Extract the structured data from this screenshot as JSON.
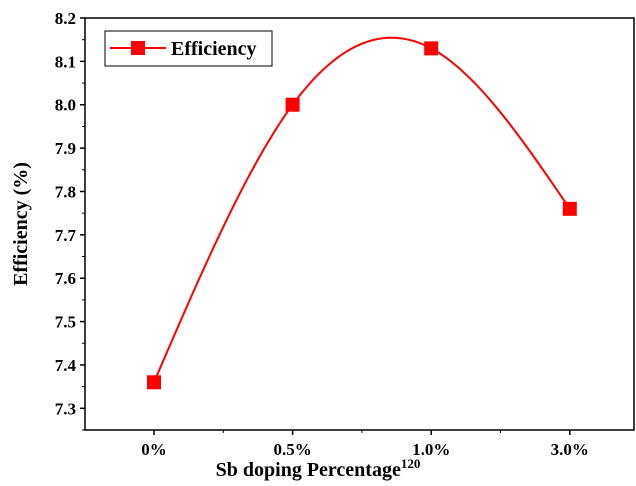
{
  "chart_data": {
    "type": "line",
    "title": "",
    "xlabel": "Sb doping Percentage",
    "xlabel_superscript": "120",
    "ylabel": "Efficiency (%)",
    "categories": [
      "0%",
      "0.5%",
      "1.0%",
      "3.0%"
    ],
    "series": [
      {
        "name": "Efficiency",
        "values": [
          7.36,
          8.0,
          8.13,
          7.76
        ],
        "color": "#ff0000",
        "marker": "square",
        "smooth": true
      }
    ],
    "ylim": [
      7.25,
      8.2
    ],
    "yticks": [
      "7.3",
      "7.4",
      "7.5",
      "7.6",
      "7.7",
      "7.8",
      "7.9",
      "8.0",
      "8.1",
      "8.2"
    ],
    "grid": false,
    "legend": "top-left"
  }
}
